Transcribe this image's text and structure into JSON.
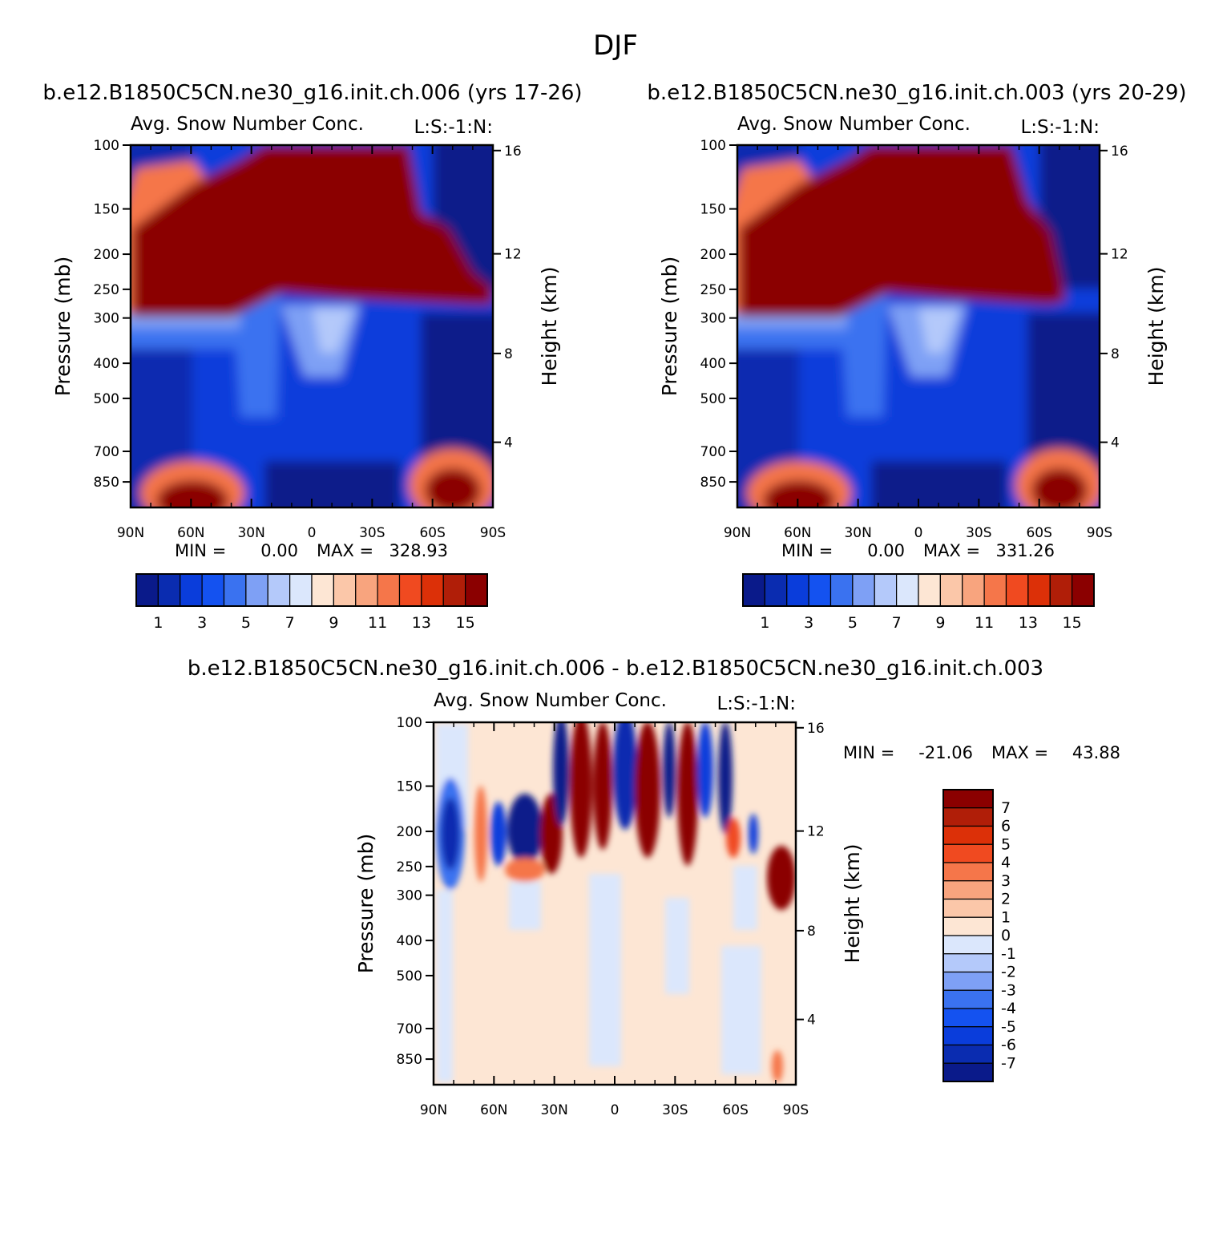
{
  "figure": {
    "title": "DJF"
  },
  "colors": {
    "abs_scale": [
      "#0a1a8a",
      "#0a2cb0",
      "#0a3ddb",
      "#1452f0",
      "#3a72f0",
      "#7ea0f5",
      "#b4c9fa",
      "#dbe7fc",
      "#fde6d4",
      "#fbc7a9",
      "#f8a47e",
      "#f5764a",
      "#f04a20",
      "#dc3008",
      "#b01e08",
      "#8b0000"
    ],
    "diff_scale": [
      "#0a1a8a",
      "#0a2cb0",
      "#0a3ddb",
      "#1452f0",
      "#3a72f0",
      "#7ea0f5",
      "#b4c9fa",
      "#dbe7fc",
      "#fde6d4",
      "#fbc7a9",
      "#f8a47e",
      "#f5764a",
      "#f04a20",
      "#dc3008",
      "#b01e08",
      "#8b0000"
    ]
  },
  "chart_data": [
    {
      "type": "heatmap",
      "id": "panel1",
      "subtitle": "b.e12.B1850C5CN.ne30_g16.init.ch.006 (yrs 17-26)",
      "variable_label": "Avg. Snow Number Conc.",
      "units_label": "L:S:-1:N:",
      "ylabel": "Pressure (mb)",
      "ylabel_right": "Height (km)",
      "x_ticks": [
        "90N",
        "60N",
        "30N",
        "0",
        "30S",
        "60S",
        "90S"
      ],
      "y_ticks": [
        "100",
        "150",
        "200",
        "250",
        "300",
        "400",
        "500",
        "700",
        "850"
      ],
      "y_ticks_right": [
        "16",
        "12",
        "8",
        "4"
      ],
      "min_label": "MIN =",
      "min_value": "0.00",
      "max_label": "MAX =",
      "max_value": "328.93",
      "colorbar_labels": [
        "1",
        "3",
        "5",
        "7",
        "9",
        "11",
        "13",
        "15"
      ],
      "xlim": [
        90,
        -90
      ],
      "ylim": [
        100,
        1000
      ]
    },
    {
      "type": "heatmap",
      "id": "panel2",
      "subtitle": "b.e12.B1850C5CN.ne30_g16.init.ch.003 (yrs 20-29)",
      "variable_label": "Avg. Snow Number Conc.",
      "units_label": "L:S:-1:N:",
      "ylabel": "Pressure (mb)",
      "ylabel_right": "Height (km)",
      "x_ticks": [
        "90N",
        "60N",
        "30N",
        "0",
        "30S",
        "60S",
        "90S"
      ],
      "y_ticks": [
        "100",
        "150",
        "200",
        "250",
        "300",
        "400",
        "500",
        "700",
        "850"
      ],
      "y_ticks_right": [
        "16",
        "12",
        "8",
        "4"
      ],
      "min_label": "MIN =",
      "min_value": "0.00",
      "max_label": "MAX =",
      "max_value": "331.26",
      "colorbar_labels": [
        "1",
        "3",
        "5",
        "7",
        "9",
        "11",
        "13",
        "15"
      ],
      "xlim": [
        90,
        -90
      ],
      "ylim": [
        100,
        1000
      ]
    },
    {
      "type": "heatmap",
      "id": "panel3",
      "subtitle": "b.e12.B1850C5CN.ne30_g16.init.ch.006 - b.e12.B1850C5CN.ne30_g16.init.ch.003",
      "variable_label": "Avg. Snow Number Conc.",
      "units_label": "L:S:-1:N:",
      "ylabel": "Pressure (mb)",
      "ylabel_right": "Height (km)",
      "x_ticks": [
        "90N",
        "60N",
        "30N",
        "0",
        "30S",
        "60S",
        "90S"
      ],
      "y_ticks": [
        "100",
        "150",
        "200",
        "250",
        "300",
        "400",
        "500",
        "700",
        "850"
      ],
      "y_ticks_right": [
        "16",
        "12",
        "8",
        "4"
      ],
      "min_label": "MIN =",
      "min_value": "-21.06",
      "max_label": "MAX =",
      "max_value": "43.88",
      "colorbar_labels": [
        "7",
        "6",
        "5",
        "4",
        "3",
        "2",
        "1",
        "0",
        "-1",
        "-2",
        "-3",
        "-4",
        "-5",
        "-6",
        "-7"
      ],
      "xlim": [
        90,
        -90
      ],
      "ylim": [
        100,
        1000
      ]
    }
  ]
}
